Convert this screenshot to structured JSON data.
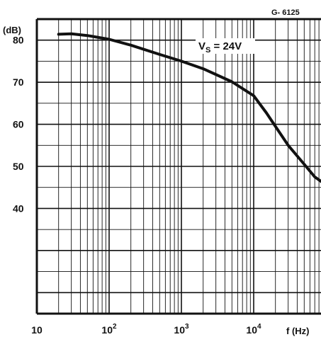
{
  "chart_data": {
    "type": "line",
    "title": "",
    "figure_code": "G- 6125",
    "annotation": {
      "base": "V",
      "sub": "S",
      "rest": " = 24V"
    },
    "ylabel": "(dB)",
    "xlabel": "f (Hz)",
    "x_scale": "log",
    "xlim": [
      10,
      100000
    ],
    "ylim": [
      15,
      85
    ],
    "grid": true,
    "x_ticks": [
      {
        "value": 10,
        "base": "10",
        "exp": ""
      },
      {
        "value": 100,
        "base": "10",
        "exp": "2"
      },
      {
        "value": 1000,
        "base": "10",
        "exp": "3"
      },
      {
        "value": 10000,
        "base": "10",
        "exp": "4"
      }
    ],
    "y_ticks": [
      {
        "value": 80,
        "label": "80"
      },
      {
        "value": 70,
        "label": "70"
      },
      {
        "value": 60,
        "label": "60"
      },
      {
        "value": 50,
        "label": "50"
      },
      {
        "value": 40,
        "label": "40"
      }
    ],
    "series": [
      {
        "name": "",
        "x": [
          20,
          30,
          50,
          100,
          200,
          500,
          1000,
          2000,
          5000,
          10000,
          15000,
          20000,
          30000,
          50000,
          70000,
          100000
        ],
        "y": [
          81.4,
          81.5,
          81.1,
          80.2,
          78.8,
          76.6,
          75.0,
          73.2,
          70.1,
          66.8,
          62.7,
          59.5,
          55.0,
          50.5,
          47.5,
          45.6
        ]
      }
    ],
    "line_color": "#111111",
    "grid_color": "#111111"
  }
}
